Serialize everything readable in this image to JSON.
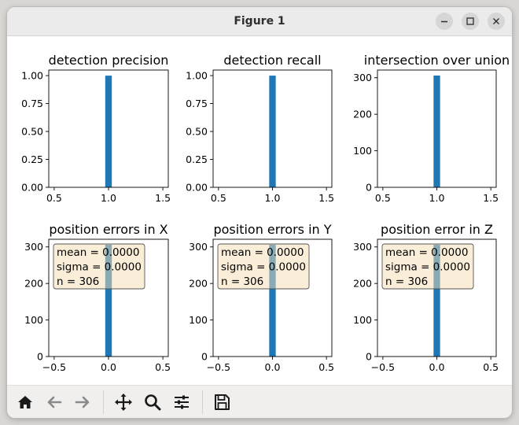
{
  "window": {
    "title": "Figure 1"
  },
  "chart_data": [
    {
      "type": "bar",
      "title": "detection precision",
      "x": [
        1.0
      ],
      "values": [
        1.0
      ],
      "xlim": [
        0.45,
        1.55
      ],
      "ylim": [
        0,
        1.05
      ],
      "xticks": [
        "0.5",
        "1.0",
        "1.5"
      ],
      "yticks": [
        "0.00",
        "0.25",
        "0.50",
        "0.75",
        "1.00"
      ],
      "color": "#1f77b4"
    },
    {
      "type": "bar",
      "title": "detection recall",
      "x": [
        1.0
      ],
      "values": [
        1.0
      ],
      "xlim": [
        0.45,
        1.55
      ],
      "ylim": [
        0,
        1.05
      ],
      "xticks": [
        "0.5",
        "1.0",
        "1.5"
      ],
      "yticks": [
        "0.00",
        "0.25",
        "0.50",
        "0.75",
        "1.00"
      ],
      "color": "#1f77b4"
    },
    {
      "type": "bar",
      "title": "intersection over union",
      "x": [
        1.0
      ],
      "values": [
        306
      ],
      "xlim": [
        0.45,
        1.55
      ],
      "ylim": [
        0,
        321
      ],
      "xticks": [
        "0.5",
        "1.0",
        "1.5"
      ],
      "yticks": [
        "0",
        "100",
        "200",
        "300"
      ],
      "color": "#1f77b4"
    },
    {
      "type": "bar",
      "title": "position errors in X",
      "x": [
        0.0
      ],
      "values": [
        306
      ],
      "xlim": [
        -0.55,
        0.55
      ],
      "ylim": [
        0,
        321
      ],
      "xticks": [
        "−0.5",
        "0.0",
        "0.5"
      ],
      "yticks": [
        "0",
        "100",
        "200",
        "300"
      ],
      "color": "#1f77b4",
      "annotation": [
        "mean = 0.0000",
        "sigma = 0.0000",
        "n = 306"
      ]
    },
    {
      "type": "bar",
      "title": "position errors in Y",
      "x": [
        0.0
      ],
      "values": [
        306
      ],
      "xlim": [
        -0.55,
        0.55
      ],
      "ylim": [
        0,
        321
      ],
      "xticks": [
        "−0.5",
        "0.0",
        "0.5"
      ],
      "yticks": [
        "0",
        "100",
        "200",
        "300"
      ],
      "color": "#1f77b4",
      "annotation": [
        "mean = 0.0000",
        "sigma = 0.0000",
        "n = 306"
      ]
    },
    {
      "type": "bar",
      "title": "position error in Z",
      "x": [
        0.0
      ],
      "values": [
        306
      ],
      "xlim": [
        -0.55,
        0.55
      ],
      "ylim": [
        0,
        321
      ],
      "xticks": [
        "−0.5",
        "0.0",
        "0.5"
      ],
      "yticks": [
        "0",
        "100",
        "200",
        "300"
      ],
      "color": "#1f77b4",
      "annotation": [
        "mean = 0.0000",
        "sigma = 0.0000",
        "n = 306"
      ]
    }
  ],
  "toolbar": {
    "buttons": [
      "home-icon",
      "back-icon",
      "forward-icon",
      "pan-icon",
      "zoom-icon",
      "configure-subplots-icon",
      "save-icon"
    ]
  }
}
